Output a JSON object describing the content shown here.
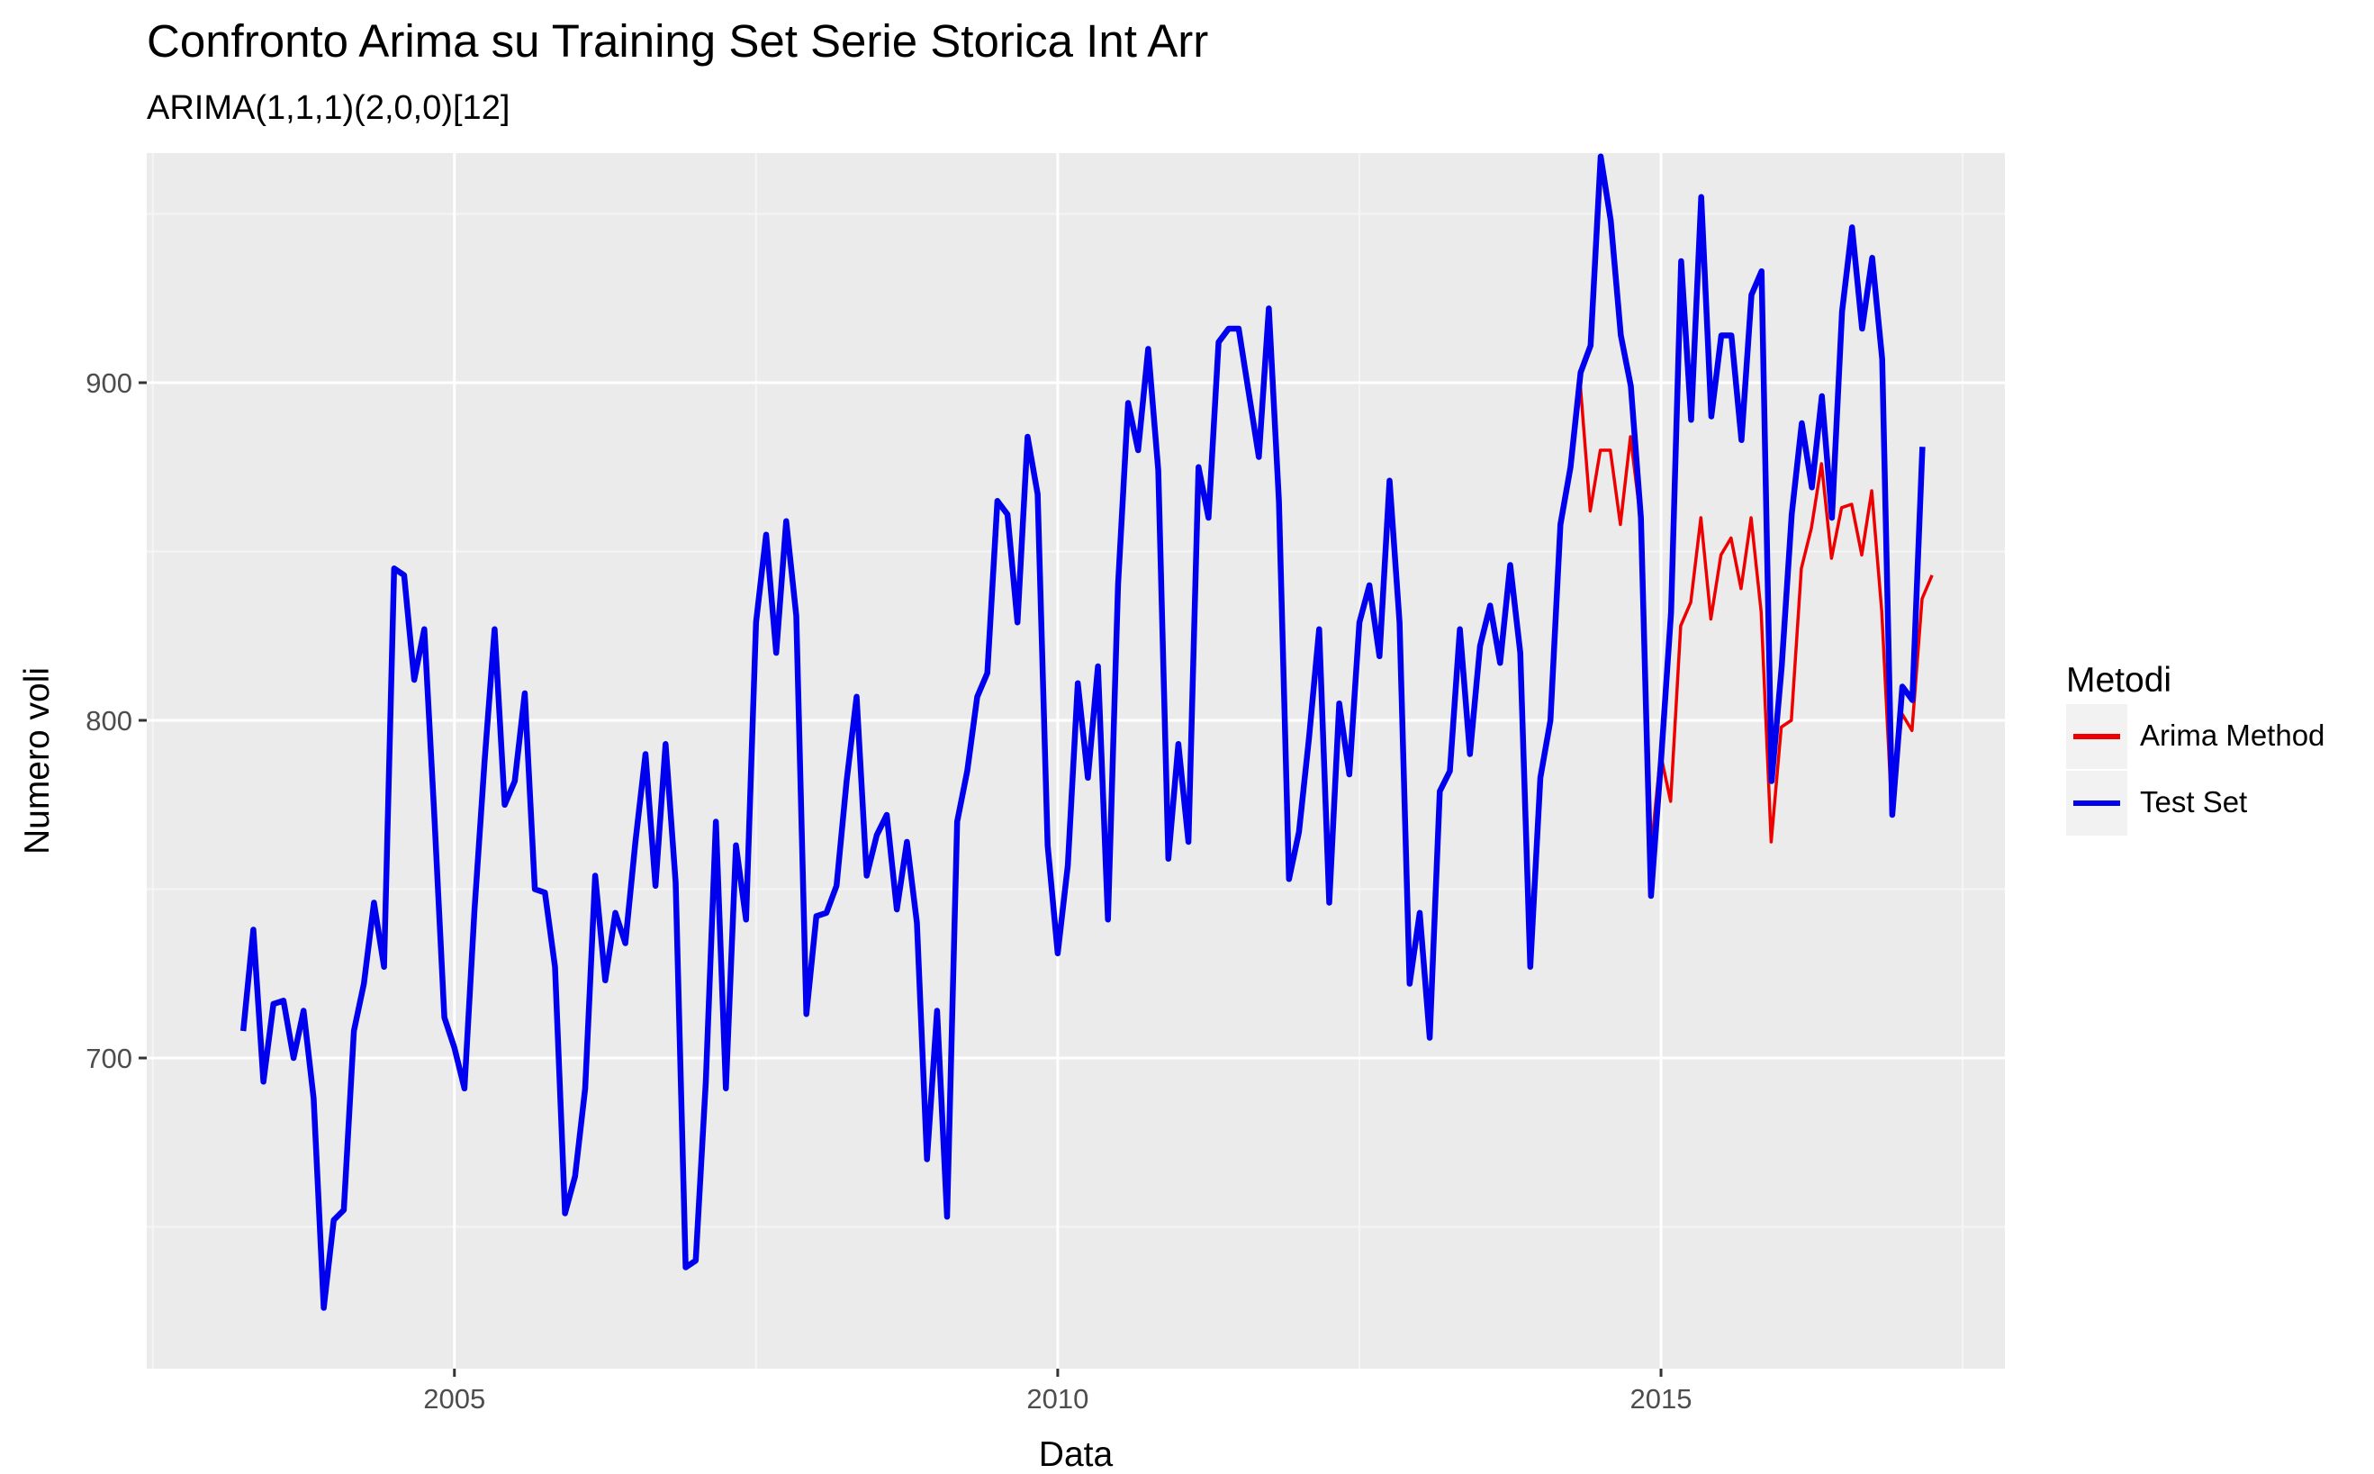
{
  "chart_data": {
    "type": "line",
    "title": "Confronto Arima su Training Set Serie Storica Int Arr",
    "subtitle": "ARIMA(1,1,1)(2,0,0)[12]",
    "xlabel": "Data",
    "ylabel": "Numero voli",
    "xlim": [
      2002.45,
      2017.85
    ],
    "ylim": [
      608,
      968
    ],
    "x_ticks": [
      2005,
      2010,
      2015
    ],
    "y_ticks": [
      700,
      800,
      900
    ],
    "grid": true,
    "legend": {
      "title": "Metodi",
      "placement": "right"
    },
    "series": [
      {
        "name": "Arima Method",
        "color": "#ee0000",
        "x_start": 2014.33,
        "step": 0.0833333,
        "values": [
          900,
          862,
          880,
          880,
          858,
          884,
          860,
          760,
          790,
          776,
          828,
          835,
          860,
          830,
          849,
          854,
          839,
          860,
          832,
          764,
          798,
          800,
          845,
          857,
          876,
          848,
          863,
          864,
          849,
          868,
          832,
          772,
          802,
          797,
          836,
          843
        ]
      },
      {
        "name": "Test Set",
        "color": "#0000ee",
        "x_start": 2003.25,
        "step": 0.0833333,
        "values": [
          708,
          738,
          693,
          716,
          717,
          700,
          714,
          688,
          626,
          652,
          655,
          708,
          722,
          746,
          727,
          845,
          843,
          812,
          827,
          772,
          712,
          703,
          691,
          744,
          788,
          827,
          775,
          782,
          808,
          750,
          749,
          727,
          654,
          665,
          691,
          754,
          723,
          743,
          734,
          764,
          790,
          751,
          793,
          752,
          638,
          640,
          693,
          770,
          691,
          763,
          741,
          829,
          855,
          820,
          859,
          831,
          713,
          742,
          743,
          751,
          782,
          807,
          754,
          766,
          772,
          744,
          764,
          740,
          670,
          714,
          653,
          770,
          785,
          807,
          814,
          865,
          861,
          829,
          884,
          867,
          763,
          731,
          757,
          811,
          783,
          816,
          741,
          840,
          894,
          880,
          910,
          874,
          759,
          793,
          764,
          875,
          860,
          912,
          916,
          916,
          897,
          878,
          922,
          865,
          753,
          767,
          795,
          827,
          746,
          805,
          784,
          829,
          840,
          819,
          871,
          829,
          722,
          743,
          706,
          779,
          785,
          827,
          790,
          822,
          834,
          817,
          846,
          820,
          727,
          783,
          800,
          858,
          875,
          903,
          911,
          967,
          948,
          914,
          899,
          860,
          748,
          788,
          832,
          936,
          889,
          955,
          890,
          914,
          914,
          883,
          926,
          933,
          782,
          816,
          861,
          888,
          869,
          896,
          860,
          921,
          946,
          916,
          937,
          907,
          772,
          810,
          806,
          881
        ]
      }
    ]
  }
}
